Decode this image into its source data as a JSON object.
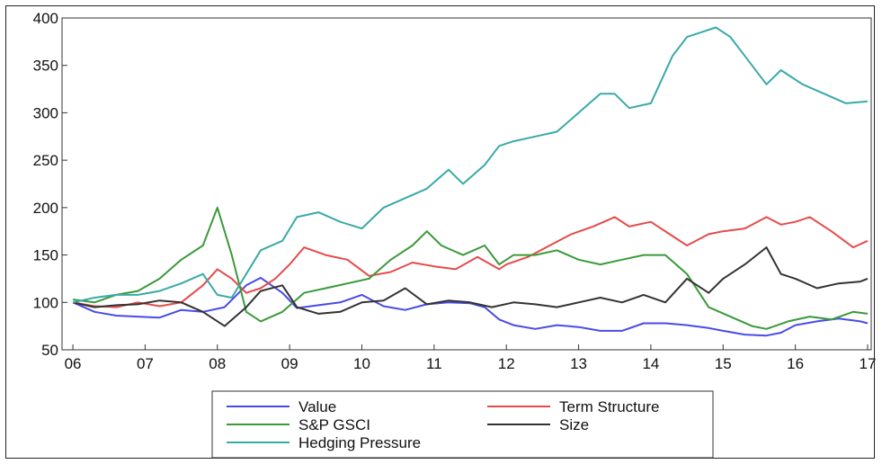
{
  "chart_data": {
    "type": "line",
    "title": "",
    "xlabel": "",
    "ylabel": "",
    "ylim": [
      50,
      400
    ],
    "xlim": [
      2005.85,
      2017.05
    ],
    "y_ticks": [
      50,
      100,
      150,
      200,
      250,
      300,
      350,
      400
    ],
    "y_tick_labels": [
      "50",
      "100",
      "150",
      "200",
      "250",
      "300",
      "350",
      "400"
    ],
    "x_ticks": [
      2006,
      2007,
      2008,
      2009,
      2010,
      2011,
      2012,
      2013,
      2014,
      2015,
      2016,
      2017
    ],
    "x_tick_labels": [
      "06",
      "07",
      "08",
      "09",
      "10",
      "11",
      "12",
      "13",
      "14",
      "15",
      "16",
      "17"
    ],
    "grid": false,
    "legend_placement": "bottom",
    "series": [
      {
        "name": "Value",
        "color": "#4a4ae6",
        "x": [
          2006.0,
          2006.3,
          2006.6,
          2006.9,
          2007.2,
          2007.5,
          2007.8,
          2008.1,
          2008.4,
          2008.6,
          2008.9,
          2009.1,
          2009.4,
          2009.7,
          2010.0,
          2010.3,
          2010.6,
          2010.9,
          2011.2,
          2011.5,
          2011.7,
          2011.9,
          2012.1,
          2012.4,
          2012.7,
          2013.0,
          2013.3,
          2013.6,
          2013.9,
          2014.2,
          2014.5,
          2014.8,
          2015.0,
          2015.3,
          2015.6,
          2015.8,
          2016.0,
          2016.3,
          2016.6,
          2016.9,
          2017.0
        ],
        "y": [
          100,
          90,
          86,
          85,
          84,
          92,
          90,
          95,
          118,
          126,
          110,
          94,
          97,
          100,
          108,
          96,
          92,
          98,
          100,
          99,
          95,
          82,
          76,
          72,
          76,
          74,
          70,
          70,
          78,
          78,
          76,
          73,
          70,
          66,
          65,
          68,
          76,
          80,
          83,
          80,
          78
        ]
      },
      {
        "name": "Term Structure",
        "color": "#e64a4a",
        "x": [
          2006.0,
          2006.3,
          2006.6,
          2006.9,
          2007.2,
          2007.5,
          2007.8,
          2008.0,
          2008.2,
          2008.4,
          2008.6,
          2008.8,
          2009.0,
          2009.2,
          2009.5,
          2009.8,
          2010.1,
          2010.4,
          2010.7,
          2011.0,
          2011.3,
          2011.6,
          2011.9,
          2012.0,
          2012.3,
          2012.6,
          2012.9,
          2013.2,
          2013.5,
          2013.7,
          2014.0,
          2014.3,
          2014.5,
          2014.8,
          2015.0,
          2015.3,
          2015.6,
          2015.8,
          2016.0,
          2016.2,
          2016.5,
          2016.8,
          2017.0
        ],
        "y": [
          100,
          96,
          95,
          100,
          96,
          100,
          118,
          135,
          125,
          110,
          115,
          125,
          140,
          158,
          150,
          145,
          128,
          132,
          142,
          138,
          135,
          148,
          135,
          140,
          148,
          160,
          172,
          180,
          190,
          180,
          185,
          170,
          160,
          172,
          175,
          178,
          190,
          182,
          185,
          190,
          175,
          158,
          165
        ]
      },
      {
        "name": "S&P GSCI",
        "color": "#3a9a3a",
        "x": [
          2006.0,
          2006.3,
          2006.6,
          2006.9,
          2007.2,
          2007.5,
          2007.8,
          2008.0,
          2008.2,
          2008.4,
          2008.6,
          2008.9,
          2009.2,
          2009.5,
          2009.8,
          2010.1,
          2010.4,
          2010.7,
          2010.9,
          2011.1,
          2011.4,
          2011.7,
          2011.9,
          2012.1,
          2012.4,
          2012.7,
          2013.0,
          2013.3,
          2013.6,
          2013.9,
          2014.2,
          2014.5,
          2014.8,
          2015.1,
          2015.4,
          2015.6,
          2015.9,
          2016.2,
          2016.5,
          2016.8,
          2017.0
        ],
        "y": [
          103,
          100,
          108,
          112,
          125,
          145,
          160,
          200,
          150,
          90,
          80,
          90,
          110,
          115,
          120,
          125,
          145,
          160,
          175,
          160,
          150,
          160,
          140,
          150,
          150,
          155,
          145,
          140,
          145,
          150,
          150,
          130,
          95,
          85,
          75,
          72,
          80,
          85,
          82,
          90,
          88
        ]
      },
      {
        "name": "Size",
        "color": "#333333",
        "x": [
          2006.0,
          2006.3,
          2006.6,
          2006.9,
          2007.2,
          2007.5,
          2007.8,
          2008.1,
          2008.4,
          2008.6,
          2008.9,
          2009.1,
          2009.4,
          2009.7,
          2010.0,
          2010.3,
          2010.6,
          2010.9,
          2011.2,
          2011.5,
          2011.8,
          2012.1,
          2012.4,
          2012.7,
          2013.0,
          2013.3,
          2013.6,
          2013.9,
          2014.2,
          2014.5,
          2014.8,
          2015.0,
          2015.3,
          2015.6,
          2015.8,
          2016.0,
          2016.3,
          2016.6,
          2016.9,
          2017.0
        ],
        "y": [
          100,
          95,
          97,
          98,
          102,
          100,
          90,
          75,
          95,
          112,
          118,
          95,
          88,
          90,
          100,
          102,
          115,
          98,
          102,
          100,
          95,
          100,
          98,
          95,
          100,
          105,
          100,
          108,
          100,
          125,
          110,
          125,
          140,
          158,
          130,
          125,
          115,
          120,
          122,
          125
        ]
      },
      {
        "name": "Hedging Pressure",
        "color": "#3aa9a9",
        "x": [
          2006.0,
          2006.3,
          2006.6,
          2006.9,
          2007.2,
          2007.5,
          2007.8,
          2008.0,
          2008.2,
          2008.4,
          2008.6,
          2008.9,
          2009.1,
          2009.4,
          2009.7,
          2010.0,
          2010.3,
          2010.6,
          2010.9,
          2011.2,
          2011.4,
          2011.7,
          2011.9,
          2012.1,
          2012.4,
          2012.7,
          2013.0,
          2013.3,
          2013.5,
          2013.7,
          2014.0,
          2014.3,
          2014.5,
          2014.7,
          2014.9,
          2015.1,
          2015.3,
          2015.6,
          2015.8,
          2016.1,
          2016.4,
          2016.7,
          2017.0
        ],
        "y": [
          100,
          105,
          108,
          108,
          112,
          120,
          130,
          108,
          105,
          130,
          155,
          165,
          190,
          195,
          185,
          178,
          200,
          210,
          220,
          240,
          225,
          245,
          265,
          270,
          275,
          280,
          300,
          320,
          320,
          305,
          310,
          360,
          380,
          385,
          390,
          380,
          360,
          330,
          345,
          330,
          320,
          310,
          312
        ]
      }
    ]
  }
}
